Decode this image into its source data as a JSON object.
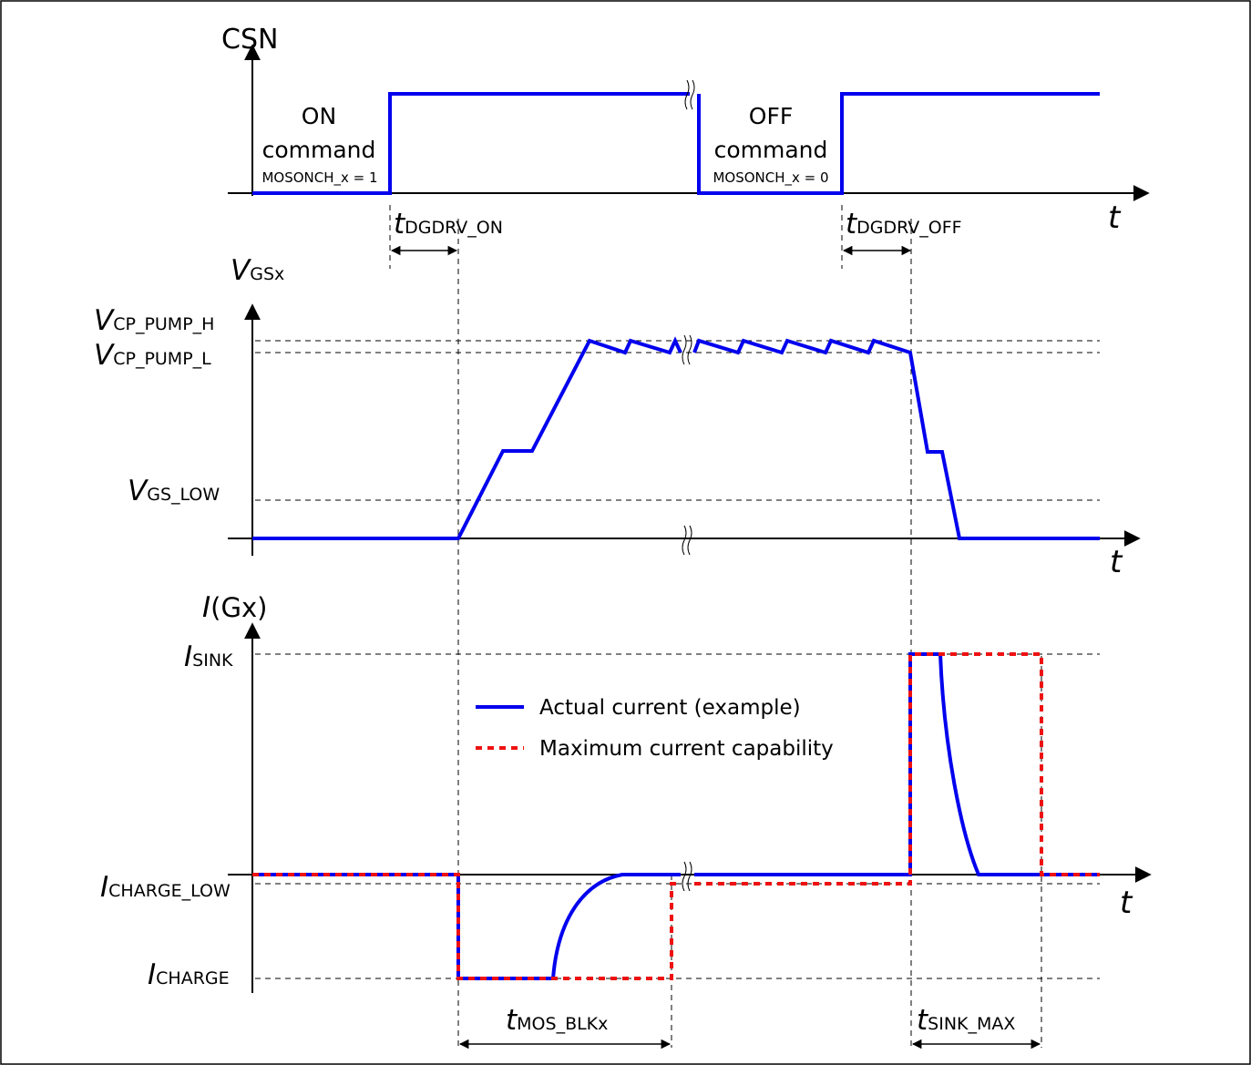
{
  "csn": {
    "axis_label": "CSN",
    "time_label": "t",
    "on_cmd": {
      "line1": "ON",
      "line2": "command",
      "line3": "MOSONCH_x = 1"
    },
    "off_cmd": {
      "line1": "OFF",
      "line2": "command",
      "line3": "MOSONCH_x = 0"
    },
    "delay_on": {
      "main": "t",
      "sub": "DGDRV_ON"
    },
    "delay_off": {
      "main": "t",
      "sub": "DGDRV_OFF"
    }
  },
  "vgs": {
    "axis_label": {
      "main": "V",
      "sub": "GSx"
    },
    "time_label": "t",
    "level_h": {
      "main": "V",
      "sub": "CP_PUMP_H"
    },
    "level_l": {
      "main": "V",
      "sub": "CP_PUMP_L"
    },
    "level_low": {
      "main": "V",
      "sub": "GS_LOW"
    }
  },
  "igx": {
    "axis_label": {
      "main": "I",
      "rest": "(Gx)"
    },
    "time_label": "t",
    "level_sink": {
      "main": "I",
      "sub": "SINK"
    },
    "level_charge_low": {
      "main": "I",
      "sub": "CHARGE_LOW"
    },
    "level_charge": {
      "main": "I",
      "sub": "CHARGE"
    },
    "blank": {
      "main": "t",
      "sub": "MOS_BLKx"
    },
    "sink_max": {
      "main": "t",
      "sub": "SINK_MAX"
    }
  },
  "legend": {
    "actual": "Actual current (example)",
    "maximum": "Maximum current capability"
  },
  "colors": {
    "actual": "#0000ee",
    "maximum": "#ee1111"
  }
}
